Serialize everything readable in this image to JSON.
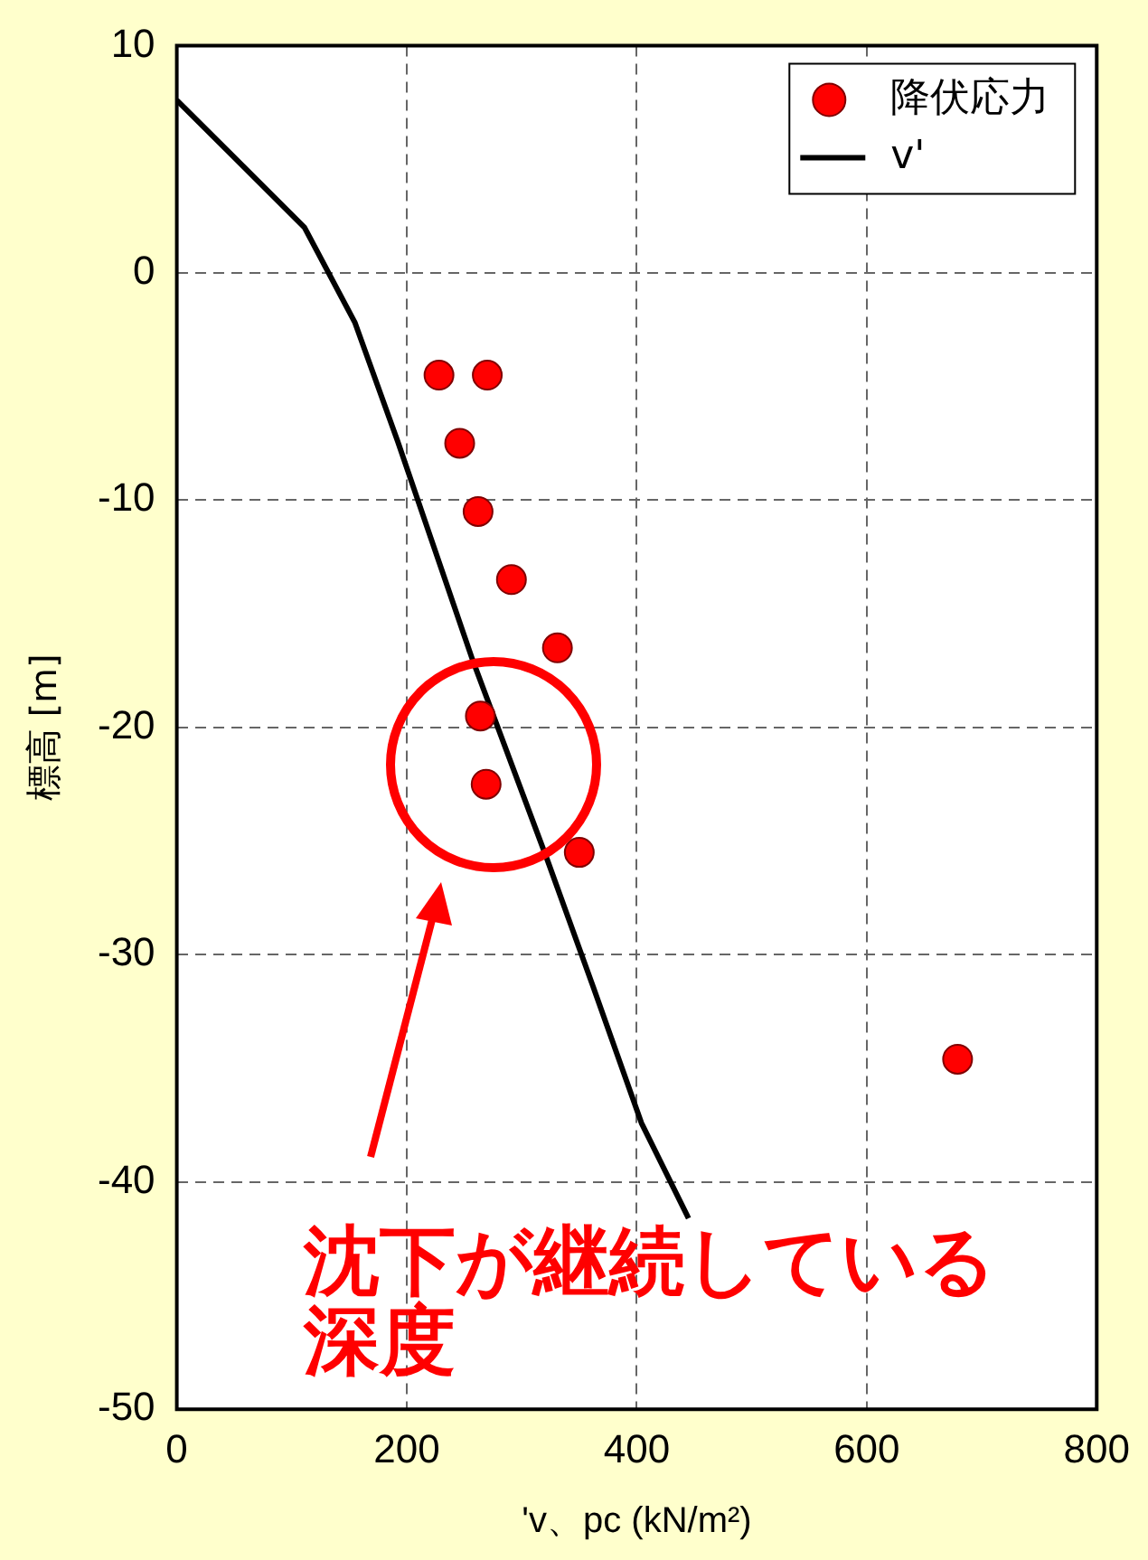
{
  "chart_data": {
    "type": "scatter",
    "xlabel": "'v、pc (kN/m²)",
    "ylabel": "標高 [m]",
    "xlim": [
      0,
      800
    ],
    "xticks": [
      0,
      200,
      400,
      600,
      800
    ],
    "ylim": [
      -50,
      10
    ],
    "yticks": [
      -50,
      -40,
      -30,
      -20,
      -10,
      0,
      10
    ],
    "grid": true,
    "legend": "top right",
    "series": [
      {
        "name": "降伏応力",
        "marker": "circle",
        "color": "#ff0000",
        "x": [
          228,
          270,
          246,
          262,
          291,
          331,
          264,
          269,
          350,
          679
        ],
        "values": [
          -4.5,
          -4.5,
          -7.5,
          -10.5,
          -13.5,
          -16.5,
          -19.5,
          -22.5,
          -25.5,
          -34.6
        ]
      },
      {
        "name": "v'",
        "type": "line",
        "marker": "none",
        "line_style": "solid",
        "color": "#000000",
        "x": [
          0,
          111,
          155,
          192,
          257,
          322,
          362,
          404,
          445
        ],
        "values": [
          7.6,
          2,
          -2.2,
          -7.4,
          -17,
          -25.8,
          -31.4,
          -37.4,
          -41.6
        ]
      }
    ],
    "annotations": [
      "沈下が継続している深度"
    ]
  }
}
